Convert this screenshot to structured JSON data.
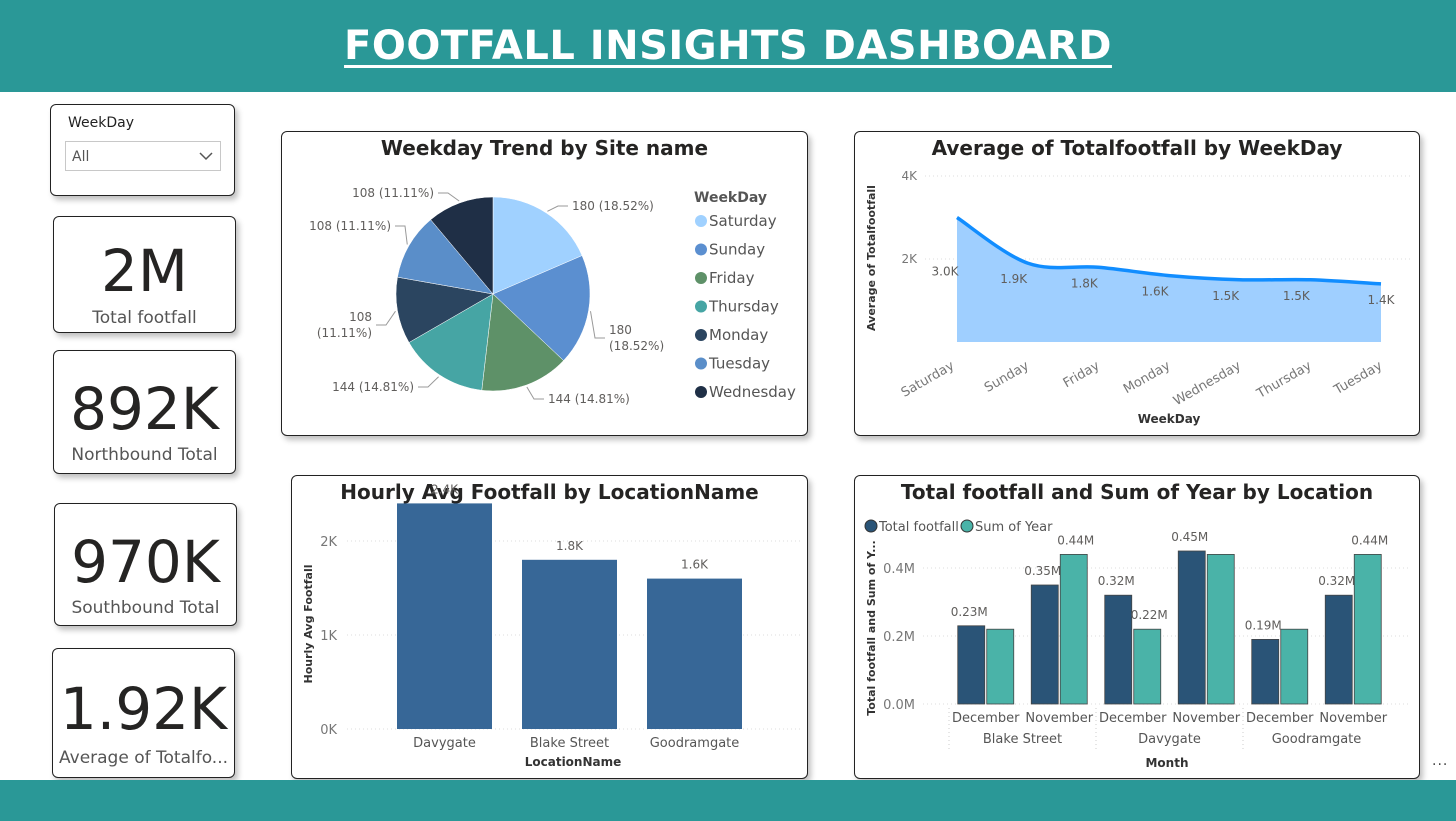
{
  "header": {
    "title": "FOOTFALL INSIGHTS DASHBOARD"
  },
  "slicer": {
    "title": "WeekDay",
    "value": "All"
  },
  "kpis": [
    {
      "value": "2M",
      "label": "Total footfall"
    },
    {
      "value": "892K",
      "label": "Northbound Total"
    },
    {
      "value": "970K",
      "label": "Southbound Total"
    },
    {
      "value": "1.92K",
      "label": "Average of Totalfo..."
    }
  ],
  "colors": {
    "header": "#2a9897",
    "saturday": "#a0d1ff",
    "sunday": "#5b8fd0",
    "friday": "#5e9168",
    "thursday": "#46a5a4",
    "monday": "#2b4560",
    "tuesday": "#5a8ec9",
    "wednesday": "#1f2f46",
    "bar": "#376797",
    "total_footfall": "#2a5477",
    "sum_of_year": "#4ab3a8",
    "line": "#118dff",
    "area": "#9fcfff"
  },
  "chart_data": [
    {
      "id": "pie",
      "type": "pie",
      "title": "Weekday Trend by Site name",
      "legend_title": "WeekDay",
      "legend_position": "right",
      "slices": [
        {
          "name": "Saturday",
          "value": 180,
          "label": "180 (18.52%)",
          "color_key": "saturday"
        },
        {
          "name": "Sunday",
          "value": 180,
          "label": "180 (18.52%)",
          "color_key": "sunday"
        },
        {
          "name": "Friday",
          "value": 144,
          "label": "144 (14.81%)",
          "color_key": "friday"
        },
        {
          "name": "Thursday",
          "value": 144,
          "label": "144 (14.81%)",
          "color_key": "thursday"
        },
        {
          "name": "Monday",
          "value": 108,
          "label": "108 (11.11%)",
          "color_key": "monday"
        },
        {
          "name": "Tuesday",
          "value": 108,
          "label": "108 (11.11%)",
          "color_key": "tuesday"
        },
        {
          "name": "Wednesday",
          "value": 108,
          "label": "108 (11.11%)",
          "color_key": "wednesday"
        }
      ]
    },
    {
      "id": "area",
      "type": "area",
      "title": "Average of Totalfootfall by WeekDay",
      "xlabel": "WeekDay",
      "ylabel": "Average of Totalfootfall",
      "categories": [
        "Saturday",
        "Sunday",
        "Friday",
        "Monday",
        "Wednesday",
        "Thursday",
        "Tuesday"
      ],
      "values": [
        3000,
        1900,
        1800,
        1600,
        1500,
        1500,
        1400
      ],
      "data_labels": [
        "3.0K",
        "1.9K",
        "1.8K",
        "1.6K",
        "1.5K",
        "1.5K",
        "1.4K"
      ],
      "ylim": [
        0,
        4000
      ],
      "yticks": [
        2000,
        4000
      ],
      "ytick_labels": [
        "2K",
        "4K"
      ],
      "grid": true
    },
    {
      "id": "bar",
      "type": "bar",
      "title": "Hourly Avg Footfall by LocationName",
      "xlabel": "LocationName",
      "ylabel": "Hourly Avg Footfall",
      "categories": [
        "Davygate",
        "Blake Street",
        "Goodramgate"
      ],
      "values": [
        2400,
        1800,
        1600
      ],
      "data_labels": [
        "2.4K",
        "1.8K",
        "1.6K"
      ],
      "ylim": [
        0,
        2500
      ],
      "yticks": [
        0,
        1000,
        2000
      ],
      "ytick_labels": [
        "0K",
        "1K",
        "2K"
      ],
      "grid": true
    },
    {
      "id": "clustered",
      "type": "bar",
      "title": "Total footfall and Sum of Year by Location",
      "xlabel": "Month",
      "ylabel": "Total footfall and Sum of Y...",
      "groups": [
        {
          "name": "Blake Street",
          "months": [
            "December",
            "November"
          ]
        },
        {
          "name": "Davygate",
          "months": [
            "December",
            "November"
          ]
        },
        {
          "name": "Goodramgate",
          "months": [
            "December",
            "November"
          ]
        }
      ],
      "series": [
        {
          "name": "Total footfall",
          "color_key": "total_footfall",
          "values": [
            0.23,
            0.35,
            0.32,
            0.45,
            0.19,
            0.32
          ],
          "data_labels": [
            "0.23M",
            "0.35M",
            "0.32M",
            "0.45M",
            "0.19M",
            "0.32M"
          ]
        },
        {
          "name": "Sum of Year",
          "color_key": "sum_of_year",
          "values": [
            0.22,
            0.44,
            0.22,
            0.44,
            0.22,
            0.44
          ],
          "data_labels": [
            "",
            "0.44M",
            "0.22M",
            "",
            "",
            "0.44M"
          ]
        }
      ],
      "ylim": [
        0,
        0.5
      ],
      "yticks": [
        0,
        0.2,
        0.4
      ],
      "ytick_labels": [
        "0.0M",
        "0.2M",
        "0.4M"
      ],
      "legend_position": "top-left",
      "grid": true
    }
  ]
}
